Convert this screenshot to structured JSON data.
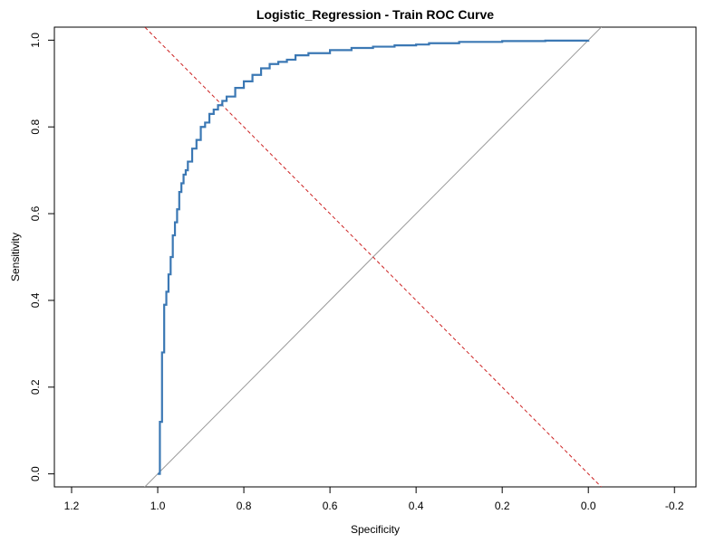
{
  "chart_data": {
    "type": "line",
    "title": "Logistic_Regression - Train ROC Curve",
    "xlabel": "Specificity",
    "ylabel": "Sensitivity",
    "xlim": [
      1.24,
      -0.25
    ],
    "ylim": [
      -0.03,
      1.03
    ],
    "x_reversed": true,
    "x_ticks": [
      1.2,
      1.0,
      0.8,
      0.6,
      0.4,
      0.2,
      0.0,
      -0.2
    ],
    "x_tick_labels": [
      "1.2",
      "1.0",
      "0.8",
      "0.6",
      "0.4",
      "0.2",
      "0.0",
      "-0.2"
    ],
    "y_ticks": [
      0.0,
      0.2,
      0.4,
      0.6,
      0.8,
      1.0
    ],
    "y_tick_labels": [
      "0.0",
      "0.2",
      "0.4",
      "0.6",
      "0.8",
      "1.0"
    ],
    "grid": false,
    "colors": {
      "roc": "#3b78b4",
      "diagonal": "#999999",
      "threshold": "#cc2222",
      "axis": "#000000"
    },
    "series": [
      {
        "type": "step",
        "x": [
          1.0,
          0.995,
          0.995,
          0.99,
          0.99,
          0.985,
          0.985,
          0.98,
          0.975,
          0.97,
          0.965,
          0.96,
          0.955,
          0.95,
          0.945,
          0.94,
          0.935,
          0.93,
          0.92,
          0.91,
          0.9,
          0.89,
          0.88,
          0.87,
          0.86,
          0.85,
          0.84,
          0.82,
          0.8,
          0.78,
          0.76,
          0.74,
          0.72,
          0.7,
          0.68,
          0.65,
          0.6,
          0.55,
          0.5,
          0.45,
          0.4,
          0.37,
          0.3,
          0.2,
          0.1,
          0.0
        ],
        "y": [
          0.0,
          0.0,
          0.12,
          0.12,
          0.28,
          0.3,
          0.39,
          0.42,
          0.46,
          0.5,
          0.55,
          0.58,
          0.61,
          0.65,
          0.67,
          0.69,
          0.7,
          0.72,
          0.75,
          0.77,
          0.8,
          0.81,
          0.83,
          0.84,
          0.85,
          0.86,
          0.87,
          0.89,
          0.905,
          0.92,
          0.935,
          0.945,
          0.95,
          0.955,
          0.965,
          0.97,
          0.977,
          0.982,
          0.985,
          0.988,
          0.99,
          0.993,
          0.996,
          0.998,
          0.999,
          1.0
        ]
      },
      {
        "type": "reference",
        "x": [
          1.04,
          -0.04
        ],
        "y": [
          -0.04,
          1.04
        ]
      },
      {
        "type": "threshold",
        "x": [
          1.04,
          -0.04
        ],
        "y": [
          1.04,
          -0.04
        ]
      }
    ]
  }
}
